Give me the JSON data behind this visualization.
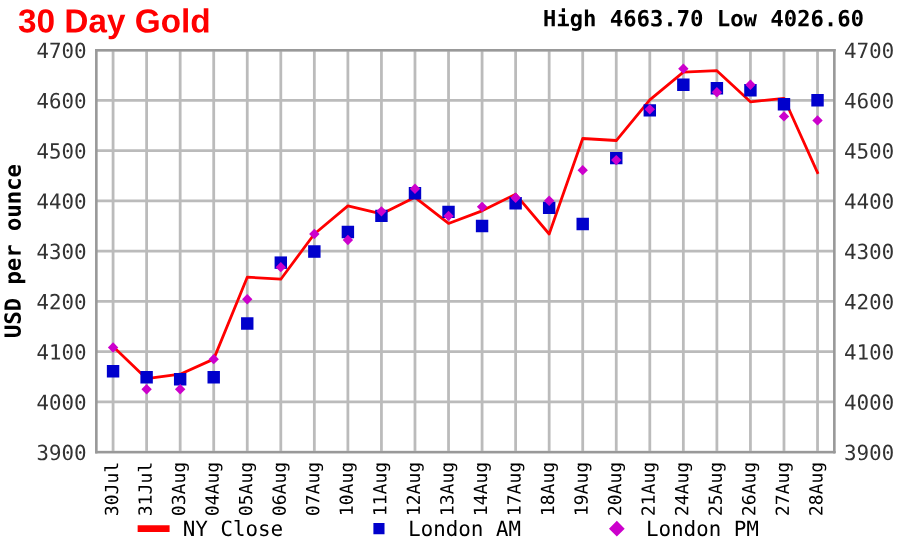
{
  "chart_data": {
    "type": "line",
    "title": "30 Day Gold",
    "subtitle": "High 4663.70 Low 4026.60",
    "ylabel": "USD per ounce",
    "categories": [
      "30Jul",
      "31Jul",
      "03Aug",
      "04Aug",
      "05Aug",
      "06Aug",
      "07Aug",
      "10Aug",
      "11Aug",
      "12Aug",
      "13Aug",
      "14Aug",
      "17Aug",
      "18Aug",
      "19Aug",
      "20Aug",
      "21Aug",
      "24Aug",
      "25Aug",
      "26Aug",
      "27Aug",
      "28Aug"
    ],
    "series": [
      {
        "name": "NY Close",
        "color": "#ff0000",
        "marker": "none",
        "values": [
          4110,
          4046,
          4055,
          4085,
          4248,
          4244,
          4334,
          4390,
          4374,
          4407,
          4355,
          4380,
          4413,
          4334,
          4524,
          4520,
          4601,
          4656,
          4659,
          4597,
          4604,
          4456
        ]
      },
      {
        "name": "London AM",
        "type": "scatter",
        "color": "#0000cc",
        "marker": "square",
        "values": [
          4061,
          4049,
          4045,
          4049,
          4156,
          4277,
          4299,
          4338,
          4370,
          4415,
          4378,
          4350,
          4395,
          4386,
          4354,
          4485,
          4580,
          4631,
          4624,
          4620,
          4592,
          4600
        ]
      },
      {
        "name": "London PM",
        "type": "scatter",
        "color": "#cc00cc",
        "marker": "diamond",
        "values": [
          4108,
          4025,
          4025,
          4085,
          4204,
          4268,
          4334,
          4322,
          4379,
          4424,
          4370,
          4388,
          4406,
          4400,
          4461,
          4481,
          4582,
          4663,
          4616,
          4631,
          4568,
          4560
        ]
      }
    ],
    "ylim": [
      3900,
      4700
    ],
    "yticks": [
      3900,
      4000,
      4100,
      4200,
      4300,
      4400,
      4500,
      4600,
      4700
    ],
    "y2lim": [
      3900,
      4700
    ],
    "y2ticks": [
      3900,
      4000,
      4100,
      4200,
      4300,
      4400,
      4500,
      4600,
      4700
    ],
    "grid": true,
    "legend": "bottom"
  }
}
